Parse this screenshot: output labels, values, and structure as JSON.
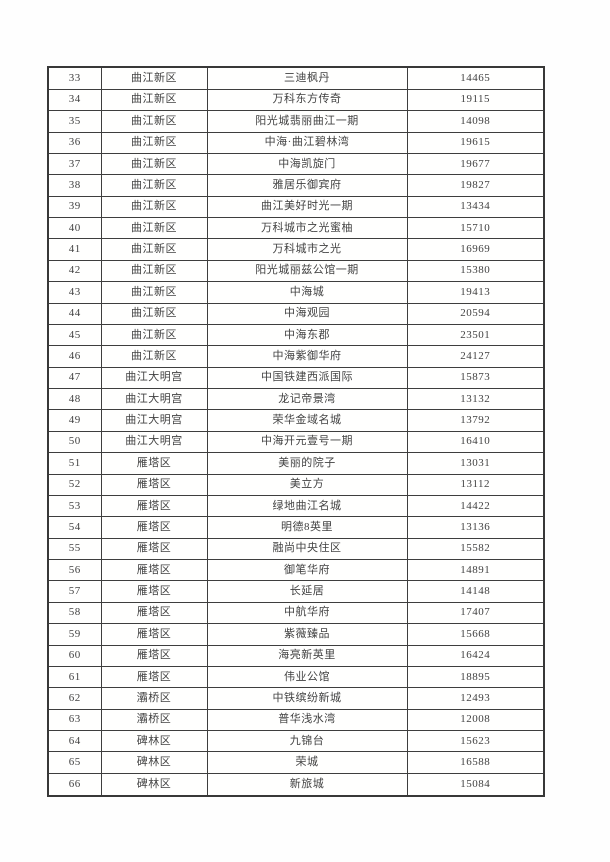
{
  "page": {
    "background": "#fefefe",
    "text_color": "#424242",
    "border_color": "#3e3e3e"
  },
  "table": {
    "first_row_number": "33",
    "last_row_number": "66",
    "rows": [
      {
        "no": "33",
        "district": "曲江新区",
        "community": "三迪枫丹",
        "price": "14465"
      },
      {
        "no": "34",
        "district": "曲江新区",
        "community": "万科东方传奇",
        "price": "19115"
      },
      {
        "no": "35",
        "district": "曲江新区",
        "community": "阳光城翡丽曲江一期",
        "price": "14098"
      },
      {
        "no": "36",
        "district": "曲江新区",
        "community": "中海·曲江碧林湾",
        "price": "19615"
      },
      {
        "no": "37",
        "district": "曲江新区",
        "community": "中海凯旋门",
        "price": "19677"
      },
      {
        "no": "38",
        "district": "曲江新区",
        "community": "雅居乐御宾府",
        "price": "19827"
      },
      {
        "no": "39",
        "district": "曲江新区",
        "community": "曲江美好时光一期",
        "price": "13434"
      },
      {
        "no": "40",
        "district": "曲江新区",
        "community": "万科城市之光蜜柚",
        "price": "15710"
      },
      {
        "no": "41",
        "district": "曲江新区",
        "community": "万科城市之光",
        "price": "16969"
      },
      {
        "no": "42",
        "district": "曲江新区",
        "community": "阳光城丽兹公馆一期",
        "price": "15380"
      },
      {
        "no": "43",
        "district": "曲江新区",
        "community": "中海城",
        "price": "19413"
      },
      {
        "no": "44",
        "district": "曲江新区",
        "community": "中海观园",
        "price": "20594"
      },
      {
        "no": "45",
        "district": "曲江新区",
        "community": "中海东郡",
        "price": "23501"
      },
      {
        "no": "46",
        "district": "曲江新区",
        "community": "中海紫御华府",
        "price": "24127"
      },
      {
        "no": "47",
        "district": "曲江大明宫",
        "community": "中国铁建西派国际",
        "price": "15873"
      },
      {
        "no": "48",
        "district": "曲江大明宫",
        "community": "龙记帝景湾",
        "price": "13132"
      },
      {
        "no": "49",
        "district": "曲江大明宫",
        "community": "荣华金域名城",
        "price": "13792"
      },
      {
        "no": "50",
        "district": "曲江大明宫",
        "community": "中海开元壹号一期",
        "price": "16410"
      },
      {
        "no": "51",
        "district": "雁塔区",
        "community": "美丽的院子",
        "price": "13031"
      },
      {
        "no": "52",
        "district": "雁塔区",
        "community": "美立方",
        "price": "13112"
      },
      {
        "no": "53",
        "district": "雁塔区",
        "community": "绿地曲江名城",
        "price": "14422"
      },
      {
        "no": "54",
        "district": "雁塔区",
        "community": "明德8英里",
        "price": "13136"
      },
      {
        "no": "55",
        "district": "雁塔区",
        "community": "融尚中央住区",
        "price": "15582"
      },
      {
        "no": "56",
        "district": "雁塔区",
        "community": "御笔华府",
        "price": "14891"
      },
      {
        "no": "57",
        "district": "雁塔区",
        "community": "长延居",
        "price": "14148"
      },
      {
        "no": "58",
        "district": "雁塔区",
        "community": "中航华府",
        "price": "17407"
      },
      {
        "no": "59",
        "district": "雁塔区",
        "community": "紫薇臻品",
        "price": "15668"
      },
      {
        "no": "60",
        "district": "雁塔区",
        "community": "海亮新英里",
        "price": "16424"
      },
      {
        "no": "61",
        "district": "雁塔区",
        "community": "伟业公馆",
        "price": "18895"
      },
      {
        "no": "62",
        "district": "灞桥区",
        "community": "中铁缤纷新城",
        "price": "12493"
      },
      {
        "no": "63",
        "district": "灞桥区",
        "community": "普华浅水湾",
        "price": "12008"
      },
      {
        "no": "64",
        "district": "碑林区",
        "community": "九锦台",
        "price": "15623"
      },
      {
        "no": "65",
        "district": "碑林区",
        "community": "荣城",
        "price": "16588"
      },
      {
        "no": "66",
        "district": "碑林区",
        "community": "新旅城",
        "price": "15084"
      }
    ]
  }
}
